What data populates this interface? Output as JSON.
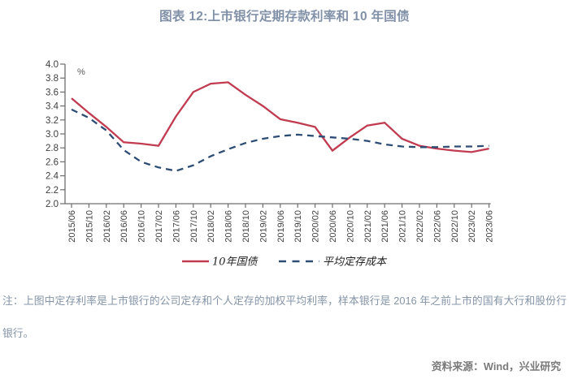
{
  "page": {
    "title": "图表 12:上市银行定期存款利率和 10 年国债",
    "note": "注：上图中定存利率是上市银行的公司定存和个人定存的加权平均利率，样本银行是 2016 年之前上市的国有大行和股份行银行。",
    "source": "资料来源：Wind，兴业研究"
  },
  "colors": {
    "title_text": "#8191A8",
    "note_text": "#8494A8",
    "source_text": "#7A7A7A",
    "axis": "#6E6E6E",
    "tick_label": "#3F3F3F",
    "unit_label": "#595959",
    "series_red": "#C13B51",
    "series_blue": "#2E4D74"
  },
  "chart_data": {
    "type": "line",
    "title": "图表 12:上市银行定期存款利率和 10 年国债",
    "unit": "%",
    "xlabel": "",
    "ylabel": "",
    "ylim": [
      2.0,
      4.0
    ],
    "ytick_step": 0.2,
    "grid": false,
    "legend_position": "bottom",
    "categories": [
      "2015/06",
      "2015/10",
      "2016/02",
      "2016/06",
      "2016/10",
      "2017/02",
      "2017/06",
      "2017/10",
      "2018/02",
      "2018/06",
      "2018/10",
      "2019/02",
      "2019/06",
      "2019/10",
      "2020/02",
      "2020/06",
      "2020/10",
      "2021/02",
      "2021/06",
      "2021/10",
      "2022/02",
      "2022/06",
      "2022/10",
      "2023/02",
      "2023/06"
    ],
    "series": [
      {
        "name": "10年国债",
        "line_style": "solid",
        "color": "#C13B51",
        "values": [
          3.51,
          3.3,
          3.1,
          2.88,
          2.86,
          2.83,
          3.25,
          3.6,
          3.72,
          3.74,
          3.56,
          3.4,
          3.21,
          3.16,
          3.1,
          2.76,
          2.95,
          3.12,
          3.16,
          2.93,
          2.83,
          2.79,
          2.76,
          2.74,
          2.79
        ]
      },
      {
        "name": "平均定存成本",
        "line_style": "dashed",
        "color": "#2E4D74",
        "values": [
          3.35,
          3.23,
          3.05,
          2.77,
          2.6,
          2.52,
          2.47,
          2.55,
          2.68,
          2.78,
          2.87,
          2.93,
          2.97,
          2.99,
          2.97,
          2.95,
          2.93,
          2.9,
          2.85,
          2.82,
          2.81,
          2.81,
          2.82,
          2.82,
          2.83
        ]
      }
    ]
  }
}
